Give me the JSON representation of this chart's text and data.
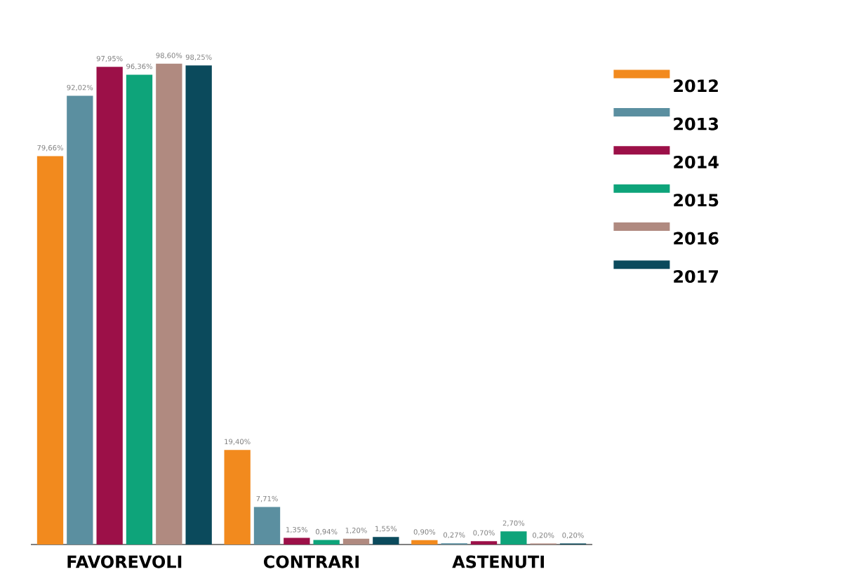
{
  "chart_data": {
    "type": "bar",
    "categories": [
      "FAVOREVOLI",
      "CONTRARI",
      "ASTENUTI"
    ],
    "tick_labels": "x",
    "legend": "top right",
    "series": [
      {
        "name": "2012",
        "color": "#f28a1e",
        "values": [
          79.66,
          19.4,
          0.9
        ],
        "value_labels": [
          "79,66%",
          "19,40%",
          "0,90%"
        ]
      },
      {
        "name": "2013",
        "color": "#5b8fa0",
        "values": [
          92.02,
          7.71,
          0.27
        ],
        "value_labels": [
          "92,02%",
          "7,71%",
          "0,27%"
        ]
      },
      {
        "name": "2014",
        "color": "#9c1048",
        "values": [
          97.95,
          1.35,
          0.7
        ],
        "value_labels": [
          "97,95%",
          "1,35%",
          "0,70%"
        ]
      },
      {
        "name": "2015",
        "color": "#0ea47a",
        "values": [
          96.36,
          0.94,
          2.7
        ],
        "value_labels": [
          "96,36%",
          "0,94%",
          "2,70%"
        ]
      },
      {
        "name": "2016",
        "color": "#b08a80",
        "values": [
          98.6,
          1.2,
          0.2
        ],
        "value_labels": [
          "98,60%",
          "1,20%",
          "0,20%"
        ]
      },
      {
        "name": "2017",
        "color": "#0b4a5c",
        "values": [
          98.25,
          1.55,
          0.2
        ],
        "value_labels": [
          "98,25%",
          "1,55%",
          "0,20%"
        ]
      }
    ]
  }
}
